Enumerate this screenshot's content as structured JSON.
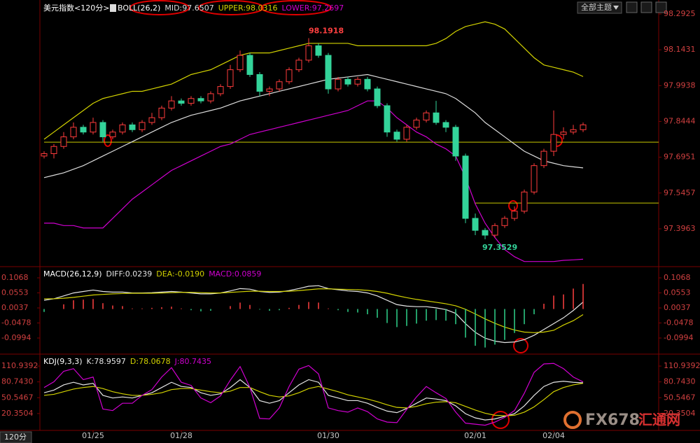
{
  "toolbar": {
    "theme": "全部主题",
    "period": "120分"
  },
  "watermark": {
    "brand": "FX678",
    "name": "汇通网"
  },
  "chart_data": [
    {
      "type": "candlestick",
      "title": "美元指数<120分>",
      "indicator": "BOLL(26,2)",
      "categories": [
        null,
        null,
        null,
        null,
        null,
        "01/25",
        null,
        null,
        null,
        null,
        null,
        null,
        null,
        null,
        "01/28",
        null,
        null,
        null,
        null,
        null,
        null,
        null,
        null,
        null,
        null,
        null,
        null,
        null,
        null,
        "01/30",
        null,
        null,
        null,
        null,
        null,
        null,
        null,
        null,
        null,
        null,
        null,
        null,
        null,
        null,
        "02/01",
        null,
        null,
        null,
        null,
        null,
        null,
        null,
        "02/04",
        null,
        null,
        null
      ],
      "open": [
        97.7,
        97.71,
        97.74,
        97.78,
        97.82,
        97.8,
        97.84,
        97.78,
        97.8,
        97.83,
        97.81,
        97.84,
        97.86,
        97.9,
        97.93,
        97.92,
        97.94,
        97.93,
        97.96,
        97.99,
        98.06,
        98.12,
        98.04,
        97.97,
        97.98,
        98.01,
        98.06,
        98.1,
        98.16,
        98.12,
        97.98,
        98.02,
        98.0,
        98.02,
        97.98,
        97.91,
        97.8,
        97.77,
        97.82,
        97.85,
        97.88,
        97.84,
        97.82,
        97.7,
        97.44,
        97.39,
        97.37,
        97.41,
        97.44,
        97.47,
        97.55,
        97.66,
        97.72,
        97.79,
        97.8,
        97.81
      ],
      "high": [
        97.72,
        97.75,
        97.8,
        97.84,
        97.83,
        97.86,
        97.85,
        97.81,
        97.84,
        97.84,
        97.85,
        97.88,
        97.91,
        97.95,
        97.94,
        97.95,
        97.95,
        97.97,
        98.0,
        98.08,
        98.14,
        98.13,
        98.05,
        97.99,
        98.02,
        98.07,
        98.11,
        98.1918,
        98.17,
        98.13,
        98.03,
        98.03,
        98.03,
        98.03,
        97.99,
        97.92,
        97.81,
        97.83,
        97.86,
        97.89,
        97.93,
        97.85,
        97.83,
        97.71,
        97.46,
        97.4,
        97.42,
        97.45,
        97.49,
        97.56,
        97.67,
        97.73,
        97.89,
        97.82,
        97.83,
        97.84
      ],
      "low": [
        97.69,
        97.69,
        97.73,
        97.77,
        97.79,
        97.79,
        97.76,
        97.77,
        97.79,
        97.8,
        97.8,
        97.83,
        97.85,
        97.89,
        97.91,
        97.91,
        97.92,
        97.92,
        97.95,
        97.98,
        98.05,
        98.03,
        97.95,
        97.95,
        97.97,
        98.0,
        98.05,
        98.09,
        98.11,
        97.96,
        97.97,
        97.99,
        97.99,
        97.97,
        97.9,
        97.78,
        97.76,
        97.76,
        97.81,
        97.84,
        97.83,
        97.8,
        97.68,
        97.42,
        97.37,
        97.3529,
        97.36,
        97.4,
        97.43,
        97.46,
        97.54,
        97.65,
        97.7,
        97.77,
        97.79,
        97.8
      ],
      "close": [
        97.71,
        97.74,
        97.78,
        97.82,
        97.8,
        97.84,
        97.78,
        97.8,
        97.83,
        97.81,
        97.84,
        97.86,
        97.9,
        97.93,
        97.92,
        97.94,
        97.93,
        97.96,
        97.99,
        98.06,
        98.12,
        98.04,
        97.97,
        97.98,
        98.01,
        98.06,
        98.1,
        98.16,
        98.12,
        97.98,
        98.02,
        98.0,
        98.02,
        97.98,
        97.91,
        97.8,
        97.77,
        97.82,
        97.85,
        97.88,
        97.84,
        97.82,
        97.7,
        97.44,
        97.39,
        97.37,
        97.41,
        97.44,
        97.47,
        97.55,
        97.66,
        97.72,
        97.79,
        97.8,
        97.81,
        97.83
      ],
      "up_color": "#ff3c3c",
      "down_color": "#33d49a",
      "series": [
        {
          "name": "MID",
          "label": "MID:97.6507",
          "color": "#dcdcdc",
          "values": [
            97.61,
            97.62,
            97.63,
            97.645,
            97.66,
            97.68,
            97.7,
            97.72,
            97.74,
            97.76,
            97.78,
            97.8,
            97.82,
            97.84,
            97.855,
            97.87,
            97.88,
            97.89,
            97.9,
            97.915,
            97.93,
            97.94,
            97.95,
            97.96,
            97.97,
            97.98,
            97.99,
            98.0,
            98.01,
            98.02,
            98.025,
            98.03,
            98.035,
            98.04,
            98.03,
            98.02,
            98.01,
            98.0,
            97.99,
            97.98,
            97.97,
            97.96,
            97.94,
            97.91,
            97.88,
            97.84,
            97.81,
            97.78,
            97.75,
            97.72,
            97.7,
            97.68,
            97.67,
            97.66,
            97.655,
            97.6507
          ]
        },
        {
          "name": "UPPER",
          "label": "UPPER:98.0316",
          "color": "#d2d200",
          "values": [
            97.77,
            97.8,
            97.83,
            97.86,
            97.89,
            97.92,
            97.94,
            97.95,
            97.96,
            97.97,
            97.97,
            97.98,
            97.99,
            98.0,
            98.02,
            98.04,
            98.05,
            98.06,
            98.08,
            98.1,
            98.12,
            98.13,
            98.13,
            98.13,
            98.14,
            98.15,
            98.16,
            98.17,
            98.17,
            98.17,
            98.17,
            98.17,
            98.16,
            98.16,
            98.16,
            98.16,
            98.16,
            98.16,
            98.16,
            98.16,
            98.17,
            98.19,
            98.22,
            98.24,
            98.25,
            98.26,
            98.25,
            98.23,
            98.19,
            98.15,
            98.11,
            98.08,
            98.07,
            98.06,
            98.05,
            98.0316
          ]
        },
        {
          "name": "LOWER",
          "label": "LOWER:97.2697",
          "color": "#d000d0",
          "values": [
            97.42,
            97.42,
            97.41,
            97.41,
            97.4,
            97.4,
            97.4,
            97.44,
            97.48,
            97.52,
            97.55,
            97.58,
            97.61,
            97.64,
            97.66,
            97.68,
            97.7,
            97.72,
            97.74,
            97.75,
            97.77,
            97.79,
            97.8,
            97.81,
            97.82,
            97.83,
            97.84,
            97.85,
            97.86,
            97.87,
            97.88,
            97.89,
            97.91,
            97.93,
            97.93,
            97.9,
            97.86,
            97.83,
            97.8,
            97.78,
            97.75,
            97.73,
            97.7,
            97.61,
            97.5,
            97.42,
            97.36,
            97.31,
            97.28,
            97.26,
            97.26,
            97.26,
            97.26,
            97.265,
            97.267,
            97.2697
          ]
        }
      ],
      "hlines": [
        {
          "y": 97.758,
          "x_start": 0
        },
        {
          "y": 97.504,
          "x_start": 44
        }
      ],
      "hline_color": "#c8c800",
      "ylim": [
        97.2474,
        98.3275
      ],
      "yticks": [
        97.3963,
        97.5457,
        97.6951,
        97.8444,
        97.9938,
        98.1431,
        98.2925
      ]
    },
    {
      "type": "macd",
      "title": "MACD(26,12,9)",
      "series": [
        {
          "name": "DIFF",
          "label": "DIFF:0.0239",
          "color": "#e6e6e6",
          "values": [
            0.03,
            0.035,
            0.045,
            0.055,
            0.06,
            0.065,
            0.06,
            0.058,
            0.058,
            0.055,
            0.055,
            0.056,
            0.058,
            0.06,
            0.058,
            0.055,
            0.052,
            0.052,
            0.055,
            0.062,
            0.07,
            0.068,
            0.06,
            0.057,
            0.058,
            0.063,
            0.07,
            0.078,
            0.08,
            0.07,
            0.066,
            0.062,
            0.06,
            0.055,
            0.045,
            0.03,
            0.015,
            0.01,
            0.008,
            0.008,
            0.004,
            -0.002,
            -0.015,
            -0.05,
            -0.08,
            -0.1,
            -0.11,
            -0.115,
            -0.113,
            -0.105,
            -0.09,
            -0.07,
            -0.05,
            -0.03,
            -0.005,
            0.0239
          ]
        },
        {
          "name": "DEA",
          "label": "DEA:-0.0190",
          "color": "#d2d200",
          "values": [
            0.035,
            0.035,
            0.037,
            0.04,
            0.044,
            0.048,
            0.05,
            0.052,
            0.053,
            0.054,
            0.054,
            0.054,
            0.055,
            0.056,
            0.057,
            0.057,
            0.056,
            0.055,
            0.055,
            0.057,
            0.059,
            0.061,
            0.061,
            0.06,
            0.06,
            0.061,
            0.063,
            0.066,
            0.069,
            0.069,
            0.068,
            0.067,
            0.066,
            0.064,
            0.06,
            0.054,
            0.046,
            0.039,
            0.033,
            0.028,
            0.023,
            0.018,
            0.011,
            -0.001,
            -0.017,
            -0.034,
            -0.049,
            -0.062,
            -0.072,
            -0.079,
            -0.081,
            -0.079,
            -0.073,
            -0.055,
            -0.04,
            -0.019
          ]
        },
        {
          "name": "MACD",
          "label": "MACD:0.0859",
          "color": "#d000d0",
          "style": "bar",
          "up_color": "#ff4040",
          "down_color": "#2fd28a",
          "values": [
            -0.01,
            0.0,
            0.016,
            0.03,
            0.032,
            0.034,
            0.02,
            0.012,
            0.01,
            0.002,
            0.002,
            0.004,
            0.006,
            0.008,
            0.002,
            -0.004,
            -0.008,
            -0.006,
            0.0,
            0.01,
            0.022,
            0.014,
            -0.002,
            -0.006,
            -0.004,
            0.004,
            0.014,
            0.024,
            0.022,
            0.002,
            -0.004,
            -0.01,
            -0.012,
            -0.018,
            -0.03,
            -0.048,
            -0.062,
            -0.058,
            -0.05,
            -0.04,
            -0.038,
            -0.04,
            -0.052,
            -0.098,
            -0.126,
            -0.132,
            -0.122,
            -0.106,
            -0.082,
            -0.052,
            -0.018,
            0.018,
            0.046,
            0.05,
            0.07,
            0.0859
          ]
        }
      ],
      "ylim": [
        -0.1522,
        0.1356
      ],
      "yticks": [
        -0.0994,
        -0.0478,
        0.0037,
        0.0553,
        0.1068
      ]
    },
    {
      "type": "line",
      "title": "KDJ(9,3,3)",
      "series": [
        {
          "name": "K",
          "label": "K:78.9597",
          "color": "#e6e6e6",
          "values": [
            60,
            65,
            75,
            80,
            75,
            78,
            55,
            50,
            52,
            50,
            55,
            60,
            70,
            80,
            72,
            70,
            60,
            55,
            58,
            70,
            85,
            70,
            45,
            40,
            45,
            60,
            75,
            85,
            80,
            55,
            50,
            45,
            45,
            40,
            32,
            25,
            22,
            30,
            40,
            50,
            48,
            45,
            35,
            20,
            12,
            8,
            10,
            15,
            20,
            35,
            55,
            72,
            80,
            82,
            80,
            78.9597
          ]
        },
        {
          "name": "D",
          "label": "D:78.0678",
          "color": "#d2d200",
          "values": [
            55,
            57,
            62,
            67,
            70,
            72,
            68,
            62,
            58,
            55,
            55,
            57,
            60,
            66,
            68,
            68,
            65,
            62,
            60,
            63,
            70,
            70,
            62,
            55,
            52,
            54,
            60,
            68,
            72,
            67,
            62,
            56,
            52,
            48,
            43,
            37,
            32,
            31,
            34,
            39,
            42,
            43,
            41,
            34,
            27,
            21,
            17,
            16,
            17,
            23,
            33,
            47,
            62,
            70,
            75,
            78.0678
          ]
        },
        {
          "name": "J",
          "label": "J:80.7435",
          "color": "#d000d0",
          "values": [
            70,
            81,
            101,
            106,
            85,
            90,
            29,
            26,
            40,
            40,
            55,
            66,
            90,
            108,
            80,
            74,
            50,
            41,
            54,
            84,
            110,
            70,
            11,
            10,
            31,
            72,
            105,
            112,
            96,
            31,
            26,
            23,
            31,
            24,
            10,
            4,
            3,
            28,
            52,
            72,
            60,
            49,
            23,
            2,
            0,
            -2,
            4,
            13,
            26,
            59,
            99,
            115,
            116,
            106,
            90,
            80.7435
          ]
        }
      ],
      "ylim": [
        -11.86,
        128.39
      ],
      "yticks": [
        20.3504,
        50.5467,
        {
          "value": 80.743,
          "label": "80.7430"
        },
        110.9392
      ]
    }
  ]
}
